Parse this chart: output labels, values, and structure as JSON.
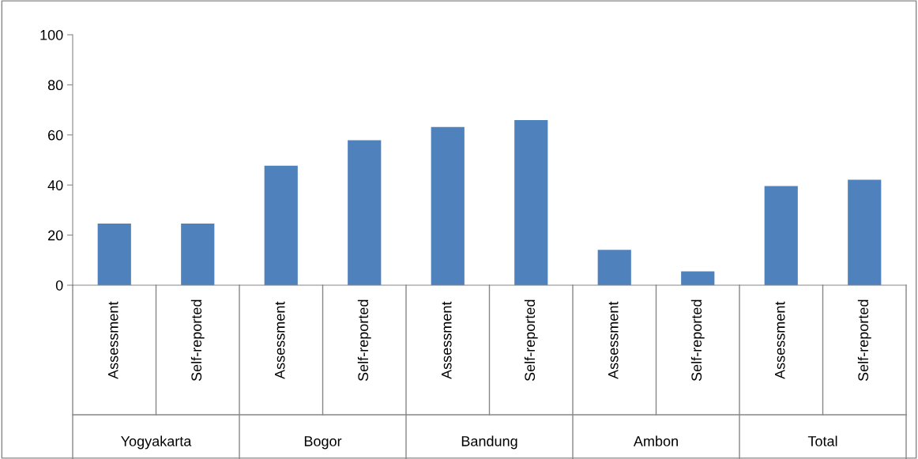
{
  "chart_data": {
    "type": "bar",
    "categories": [
      "Assessment",
      "Self-reported",
      "Assessment",
      "Self-reported",
      "Assessment",
      "Self-reported",
      "Assessment",
      "Self-reported",
      "Assessment",
      "Self-reported"
    ],
    "values": [
      24.6,
      24.6,
      47.7,
      57.9,
      63.2,
      65.9,
      14.1,
      5.5,
      39.6,
      42.1
    ],
    "color": "#4f81bd",
    "annotations": [
      "Yogyakarta",
      "Bogor",
      "Bandung",
      "Ambon",
      "Total"
    ],
    "ylim": [
      0,
      100
    ],
    "yticks": [
      0,
      20,
      40,
      60,
      80,
      100
    ],
    "grid": false,
    "legend": false
  }
}
